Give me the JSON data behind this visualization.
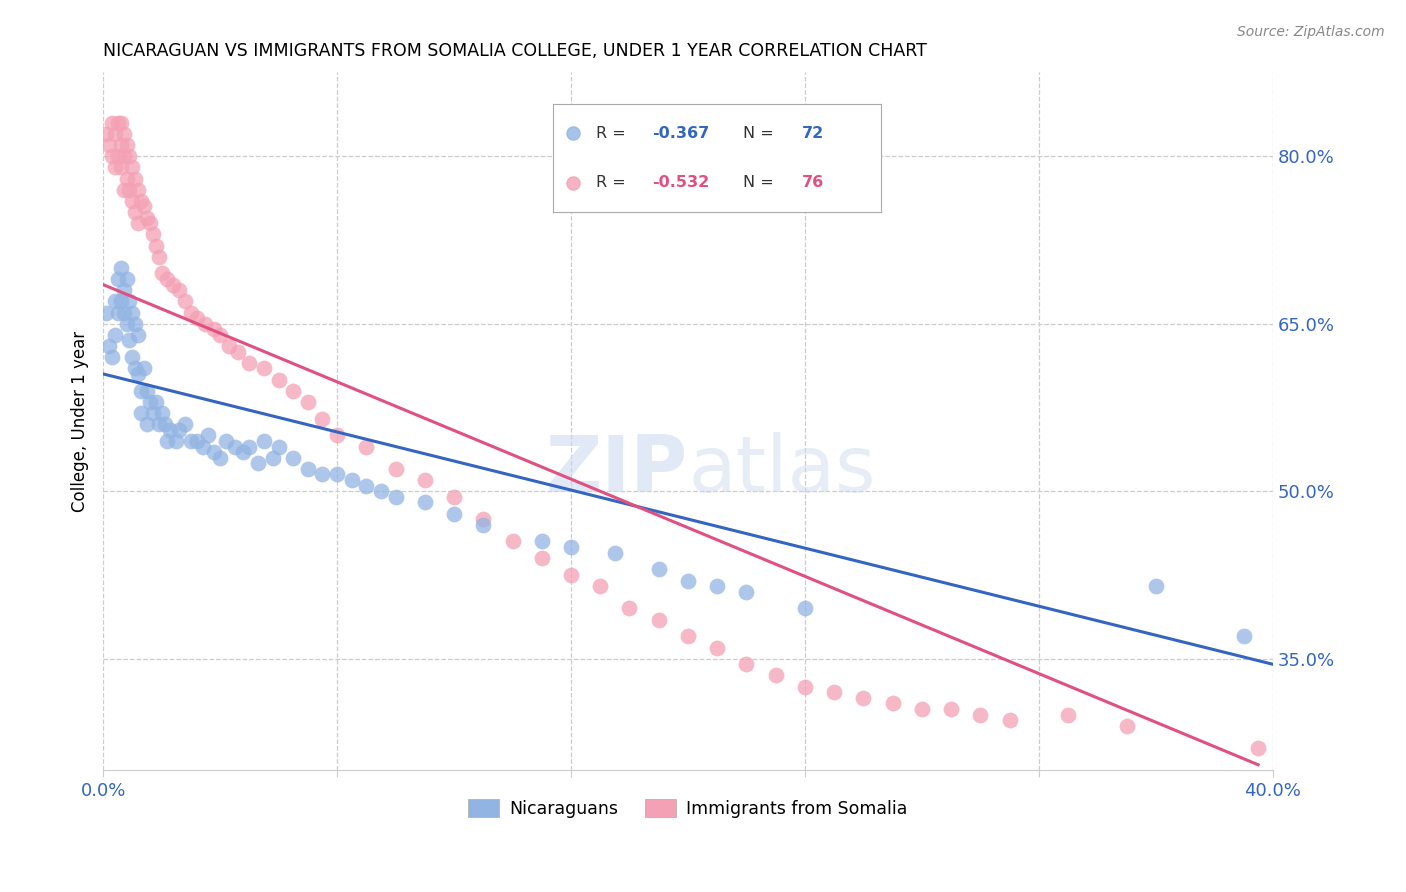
{
  "title": "NICARAGUAN VS IMMIGRANTS FROM SOMALIA COLLEGE, UNDER 1 YEAR CORRELATION CHART",
  "source": "Source: ZipAtlas.com",
  "ylabel": "College, Under 1 year",
  "xmin": 0.0,
  "xmax": 0.4,
  "ymin": 0.25,
  "ymax": 0.875,
  "x_ticks": [
    0.0,
    0.08,
    0.16,
    0.24,
    0.32,
    0.4
  ],
  "x_tick_labels": [
    "0.0%",
    "",
    "",
    "",
    "",
    "40.0%"
  ],
  "y_ticks_right": [
    0.35,
    0.5,
    0.65,
    0.8
  ],
  "y_tick_labels_right": [
    "35.0%",
    "50.0%",
    "65.0%",
    "80.0%"
  ],
  "blue_R": -0.367,
  "blue_N": 72,
  "pink_R": -0.532,
  "pink_N": 76,
  "blue_color": "#92B4E3",
  "pink_color": "#F4A0B5",
  "blue_line_color": "#3465C0",
  "pink_line_color": "#E05080",
  "watermark_zip": "ZIP",
  "watermark_atlas": "atlas",
  "legend_label_blue": "Nicaraguans",
  "legend_label_pink": "Immigrants from Somalia",
  "blue_trend_x": [
    0.0,
    0.4
  ],
  "blue_trend_y": [
    0.605,
    0.345
  ],
  "pink_trend_x": [
    0.0,
    0.395
  ],
  "pink_trend_y": [
    0.685,
    0.255
  ],
  "blue_x": [
    0.001,
    0.002,
    0.003,
    0.004,
    0.004,
    0.005,
    0.005,
    0.006,
    0.006,
    0.007,
    0.007,
    0.008,
    0.008,
    0.009,
    0.009,
    0.01,
    0.01,
    0.011,
    0.011,
    0.012,
    0.012,
    0.013,
    0.013,
    0.014,
    0.015,
    0.015,
    0.016,
    0.017,
    0.018,
    0.019,
    0.02,
    0.021,
    0.022,
    0.023,
    0.025,
    0.026,
    0.028,
    0.03,
    0.032,
    0.034,
    0.036,
    0.038,
    0.04,
    0.042,
    0.045,
    0.048,
    0.05,
    0.053,
    0.055,
    0.058,
    0.06,
    0.065,
    0.07,
    0.075,
    0.08,
    0.085,
    0.09,
    0.095,
    0.1,
    0.11,
    0.12,
    0.13,
    0.15,
    0.16,
    0.175,
    0.19,
    0.2,
    0.21,
    0.22,
    0.24,
    0.36,
    0.39
  ],
  "blue_y": [
    0.66,
    0.63,
    0.62,
    0.67,
    0.64,
    0.69,
    0.66,
    0.7,
    0.67,
    0.68,
    0.66,
    0.69,
    0.65,
    0.67,
    0.635,
    0.66,
    0.62,
    0.65,
    0.61,
    0.64,
    0.605,
    0.59,
    0.57,
    0.61,
    0.59,
    0.56,
    0.58,
    0.57,
    0.58,
    0.56,
    0.57,
    0.56,
    0.545,
    0.555,
    0.545,
    0.555,
    0.56,
    0.545,
    0.545,
    0.54,
    0.55,
    0.535,
    0.53,
    0.545,
    0.54,
    0.535,
    0.54,
    0.525,
    0.545,
    0.53,
    0.54,
    0.53,
    0.52,
    0.515,
    0.515,
    0.51,
    0.505,
    0.5,
    0.495,
    0.49,
    0.48,
    0.47,
    0.455,
    0.45,
    0.445,
    0.43,
    0.42,
    0.415,
    0.41,
    0.395,
    0.415,
    0.37
  ],
  "pink_x": [
    0.001,
    0.002,
    0.003,
    0.003,
    0.004,
    0.004,
    0.005,
    0.005,
    0.006,
    0.006,
    0.006,
    0.007,
    0.007,
    0.007,
    0.008,
    0.008,
    0.009,
    0.009,
    0.01,
    0.01,
    0.011,
    0.011,
    0.012,
    0.012,
    0.013,
    0.014,
    0.015,
    0.016,
    0.017,
    0.018,
    0.019,
    0.02,
    0.022,
    0.024,
    0.026,
    0.028,
    0.03,
    0.032,
    0.035,
    0.038,
    0.04,
    0.043,
    0.046,
    0.05,
    0.055,
    0.06,
    0.065,
    0.07,
    0.075,
    0.08,
    0.09,
    0.1,
    0.11,
    0.12,
    0.13,
    0.14,
    0.15,
    0.16,
    0.17,
    0.18,
    0.19,
    0.2,
    0.21,
    0.22,
    0.23,
    0.24,
    0.25,
    0.26,
    0.27,
    0.28,
    0.29,
    0.3,
    0.31,
    0.33,
    0.35,
    0.395
  ],
  "pink_y": [
    0.82,
    0.81,
    0.83,
    0.8,
    0.82,
    0.79,
    0.83,
    0.8,
    0.83,
    0.81,
    0.79,
    0.82,
    0.8,
    0.77,
    0.81,
    0.78,
    0.8,
    0.77,
    0.79,
    0.76,
    0.78,
    0.75,
    0.77,
    0.74,
    0.76,
    0.755,
    0.745,
    0.74,
    0.73,
    0.72,
    0.71,
    0.695,
    0.69,
    0.685,
    0.68,
    0.67,
    0.66,
    0.655,
    0.65,
    0.645,
    0.64,
    0.63,
    0.625,
    0.615,
    0.61,
    0.6,
    0.59,
    0.58,
    0.565,
    0.55,
    0.54,
    0.52,
    0.51,
    0.495,
    0.475,
    0.455,
    0.44,
    0.425,
    0.415,
    0.395,
    0.385,
    0.37,
    0.36,
    0.345,
    0.335,
    0.325,
    0.32,
    0.315,
    0.31,
    0.305,
    0.305,
    0.3,
    0.295,
    0.3,
    0.29,
    0.27
  ]
}
